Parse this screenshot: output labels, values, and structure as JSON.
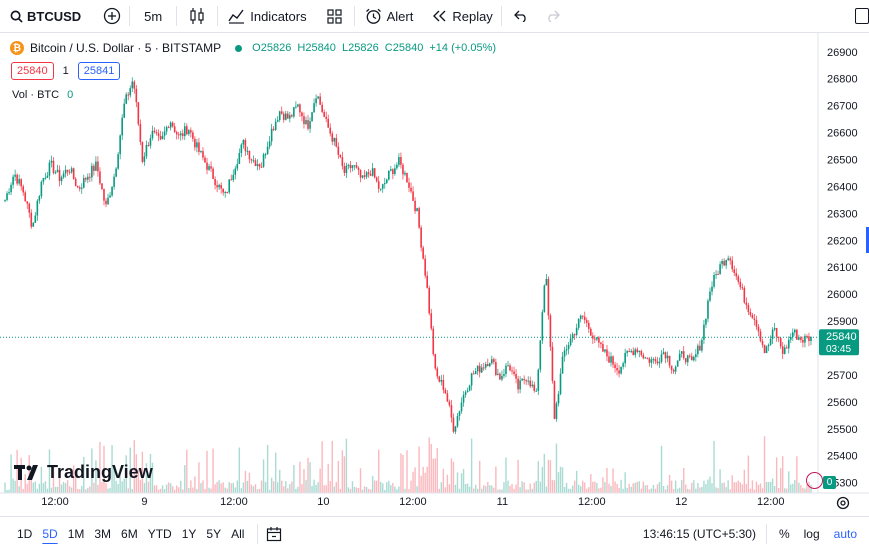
{
  "toolbar": {
    "symbol": "BTCUSD",
    "interval": "5m",
    "indicators": "Indicators",
    "alert": "Alert",
    "replay": "Replay"
  },
  "legend": {
    "title": "Bitcoin / U.S. Dollar · 5 · BITSTAMP",
    "o_label": "O",
    "o": "25826",
    "h_label": "H",
    "h": "25840",
    "l_label": "L",
    "l": "25826",
    "c_label": "C",
    "c": "25840",
    "change": "+14 (+0.05%)",
    "sell": "25840",
    "spread": "1",
    "buy": "25841",
    "vol_label": "Vol · BTC",
    "vol_value": "0"
  },
  "branding": {
    "logo_text": "TradingView"
  },
  "price_label": {
    "price": "25840",
    "countdown": "03:45"
  },
  "badge": "0",
  "colors": {
    "up": "#089981",
    "down": "#f23645",
    "accent": "#2962ff",
    "btc": "#f7931a"
  },
  "chart_data": {
    "type": "candlestick",
    "y_ticks": [
      25300,
      25400,
      25500,
      25600,
      25700,
      25800,
      25900,
      26000,
      26100,
      26200,
      26300,
      26400,
      26500,
      26600,
      26700,
      26800,
      26900
    ],
    "ylim": [
      25280,
      26940
    ],
    "x_ticks": [
      "12:00",
      "9",
      "12:00",
      "10",
      "12:00",
      "11",
      "12:00",
      "12",
      "12:00"
    ],
    "current_price": 25840,
    "close_path": [
      26350,
      26450,
      26380,
      26250,
      26420,
      26480,
      26430,
      26470,
      26390,
      26440,
      26480,
      26320,
      26450,
      26700,
      26800,
      26500,
      26600,
      26560,
      26650,
      26580,
      26620,
      26540,
      26480,
      26420,
      26360,
      26470,
      26560,
      26500,
      26480,
      26600,
      26680,
      26650,
      26700,
      26620,
      26750,
      26640,
      26560,
      26450,
      26480,
      26420,
      26460,
      26380,
      26450,
      26490,
      26420,
      26300,
      26050,
      25700,
      25650,
      25500,
      25620,
      25700,
      25730,
      25760,
      25690,
      25740,
      25650,
      25700,
      25620,
      26100,
      25540,
      25780,
      25850,
      25920,
      25860,
      25800,
      25760,
      25720,
      25780,
      25800,
      25760,
      25750,
      25790,
      25720,
      25780,
      25740,
      25820,
      26020,
      26100,
      26150,
      26050,
      25960,
      25900,
      25780,
      25870,
      25780,
      25860,
      25830,
      25840
    ]
  },
  "bottombar": {
    "ranges": [
      "1D",
      "5D",
      "1M",
      "3M",
      "6M",
      "YTD",
      "1Y",
      "5Y",
      "All"
    ],
    "active": "5D",
    "time": "13:46:15 (UTC+5:30)",
    "percent": "%",
    "log": "log",
    "auto": "auto"
  }
}
